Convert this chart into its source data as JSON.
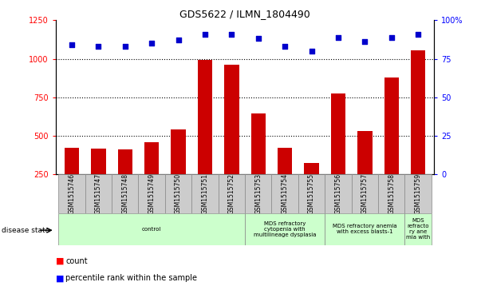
{
  "title": "GDS5622 / ILMN_1804490",
  "samples": [
    "GSM1515746",
    "GSM1515747",
    "GSM1515748",
    "GSM1515749",
    "GSM1515750",
    "GSM1515751",
    "GSM1515752",
    "GSM1515753",
    "GSM1515754",
    "GSM1515755",
    "GSM1515756",
    "GSM1515757",
    "GSM1515758",
    "GSM1515759"
  ],
  "counts": [
    420,
    415,
    410,
    455,
    540,
    990,
    960,
    645,
    420,
    320,
    775,
    530,
    880,
    1055
  ],
  "percentiles": [
    84,
    83,
    83,
    85,
    87,
    91,
    91,
    88,
    83,
    80,
    89,
    86,
    89,
    91
  ],
  "ylim_left": [
    250,
    1250
  ],
  "ylim_right": [
    0,
    100
  ],
  "yticks_left": [
    250,
    500,
    750,
    1000,
    1250
  ],
  "yticks_right": [
    0,
    25,
    50,
    75,
    100
  ],
  "bar_color": "#cc0000",
  "dot_color": "#0000cc",
  "bg_color": "#ffffff",
  "disease_groups": [
    {
      "label": "control",
      "start": 0,
      "end": 7,
      "color": "#ccffcc"
    },
    {
      "label": "MDS refractory\ncytopenia with\nmultilineage dysplasia",
      "start": 7,
      "end": 10,
      "color": "#ccffcc"
    },
    {
      "label": "MDS refractory anemia\nwith excess blasts-1",
      "start": 10,
      "end": 13,
      "color": "#ccffcc"
    },
    {
      "label": "MDS\nrefracto\nry ane\nmia with",
      "start": 13,
      "end": 14,
      "color": "#ccffcc"
    }
  ],
  "legend_count_label": "count",
  "legend_pct_label": "percentile rank within the sample",
  "disease_state_label": "disease state"
}
